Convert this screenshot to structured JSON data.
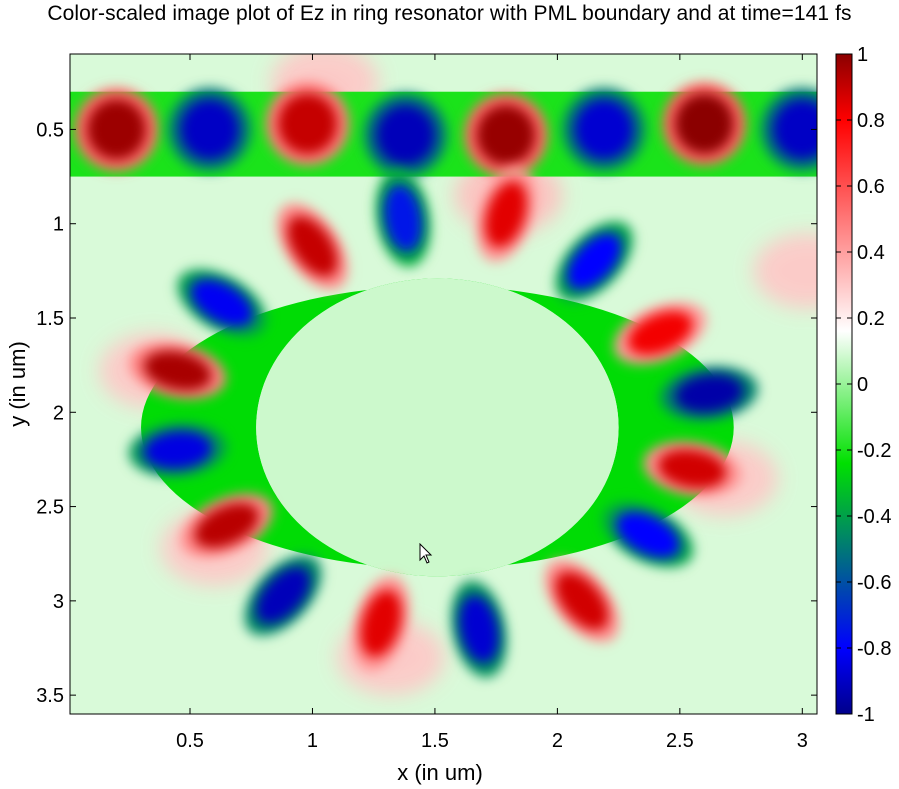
{
  "title": "Color-scaled image plot of Ez in ring resonator with PML boundary and at time=141 fs",
  "chart_data": {
    "type": "heatmap",
    "title": "Color-scaled image plot of Ez in ring resonator with PML boundary and at time=141 fs",
    "xlabel": "x (in um)",
    "ylabel": "y (in um)",
    "xlim": [
      0.01,
      3.06
    ],
    "ylim": [
      3.6,
      0.1
    ],
    "y_reversed": true,
    "x_ticks": [
      0.5,
      1,
      1.5,
      2,
      2.5,
      3
    ],
    "x_tick_labels": [
      "0.5",
      "1",
      "1.5",
      "2",
      "2.5",
      "3"
    ],
    "y_ticks": [
      0.5,
      1,
      1.5,
      2,
      2.5,
      3,
      3.5
    ],
    "y_tick_labels": [
      "0.5",
      "1",
      "1.5",
      "2",
      "2.5",
      "3",
      "3.5"
    ],
    "colorbar": {
      "range": [
        -1,
        1
      ],
      "ticks": [
        1,
        0.8,
        0.6,
        0.4,
        0.2,
        0,
        -0.2,
        -0.4,
        -0.6,
        -0.8,
        -1
      ],
      "tick_labels": [
        "1",
        "0.8",
        "0.6",
        "0.4",
        "0.2",
        "0",
        "-0.2",
        "-0.4",
        "-0.6",
        "-0.8",
        "-1"
      ],
      "colors_high_to_low": [
        "#8b0000",
        "#ff0000",
        "#ffffff",
        "#00e000",
        "#0000ff",
        "#00008b"
      ]
    },
    "background_value": 0.1,
    "structures": {
      "waveguide": {
        "x": [
          0.01,
          3.06
        ],
        "y": [
          0.3,
          0.75
        ],
        "value": -0.2
      },
      "ring": {
        "cx": 1.51,
        "cy": 2.08,
        "rx_outer": 1.21,
        "ry_outer": 1.21,
        "rx_inner": 0.74,
        "ry_inner": 0.79,
        "value": -0.25
      },
      "core": {
        "value": 0.08
      }
    },
    "waveguide_peaks": [
      {
        "x": 0.2,
        "y": 0.5,
        "value": 0.97
      },
      {
        "x": 0.58,
        "y": 0.5,
        "value": -0.9
      },
      {
        "x": 0.98,
        "y": 0.47,
        "value": 0.9
      },
      {
        "x": 1.38,
        "y": 0.53,
        "value": -0.92
      },
      {
        "x": 1.79,
        "y": 0.53,
        "value": 0.98
      },
      {
        "x": 2.19,
        "y": 0.5,
        "value": -0.88
      },
      {
        "x": 2.6,
        "y": 0.47,
        "value": 1.0
      },
      {
        "x": 3.0,
        "y": 0.5,
        "value": -0.9
      }
    ],
    "ring_peaks": [
      {
        "x": 1.37,
        "y": 0.97,
        "value": -0.75
      },
      {
        "x": 1.79,
        "y": 0.95,
        "value": 0.85
      },
      {
        "x": 1.0,
        "y": 1.12,
        "value": 0.9
      },
      {
        "x": 2.15,
        "y": 1.2,
        "value": -0.8
      },
      {
        "x": 0.63,
        "y": 1.42,
        "value": -0.82
      },
      {
        "x": 2.42,
        "y": 1.58,
        "value": 0.82
      },
      {
        "x": 0.45,
        "y": 1.78,
        "value": 0.95
      },
      {
        "x": 2.62,
        "y": 1.9,
        "value": -0.95
      },
      {
        "x": 0.45,
        "y": 2.2,
        "value": -0.85
      },
      {
        "x": 2.55,
        "y": 2.3,
        "value": 0.88
      },
      {
        "x": 0.65,
        "y": 2.6,
        "value": 0.92
      },
      {
        "x": 2.37,
        "y": 2.65,
        "value": -0.8
      },
      {
        "x": 0.88,
        "y": 2.97,
        "value": -0.92
      },
      {
        "x": 2.1,
        "y": 3.0,
        "value": 0.88
      },
      {
        "x": 1.28,
        "y": 3.12,
        "value": 0.85
      },
      {
        "x": 1.68,
        "y": 3.15,
        "value": -0.88
      }
    ],
    "halos": [
      {
        "x": 1.05,
        "y": 0.25,
        "value": 0.3
      },
      {
        "x": 1.8,
        "y": 0.85,
        "value": 0.32
      },
      {
        "x": 0.35,
        "y": 1.78,
        "value": 0.3
      },
      {
        "x": 0.6,
        "y": 2.72,
        "value": 0.3
      },
      {
        "x": 1.32,
        "y": 3.3,
        "value": 0.3
      },
      {
        "x": 2.68,
        "y": 2.35,
        "value": 0.3
      },
      {
        "x": 3.02,
        "y": 1.25,
        "value": 0.3
      }
    ]
  }
}
